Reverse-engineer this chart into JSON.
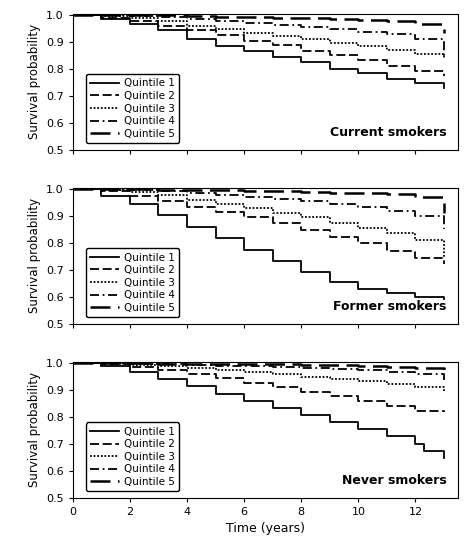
{
  "panels": [
    {
      "title": "Current smokers",
      "ylim": [
        0.5,
        1.005
      ],
      "yticks": [
        0.5,
        0.6,
        0.7,
        0.8,
        0.9,
        1.0
      ],
      "quintiles": {
        "Q1": {
          "times": [
            0,
            1,
            2,
            3,
            4,
            5,
            6,
            7,
            8,
            9,
            10,
            11,
            12,
            13
          ],
          "surv": [
            1.0,
            0.985,
            0.965,
            0.945,
            0.91,
            0.885,
            0.865,
            0.845,
            0.825,
            0.8,
            0.785,
            0.763,
            0.748,
            0.73
          ]
        },
        "Q2": {
          "times": [
            0,
            1,
            2,
            3,
            4,
            5,
            6,
            7,
            8,
            9,
            10,
            11,
            12,
            13
          ],
          "surv": [
            1.0,
            0.99,
            0.978,
            0.96,
            0.943,
            0.925,
            0.905,
            0.887,
            0.867,
            0.85,
            0.832,
            0.812,
            0.793,
            0.775
          ]
        },
        "Q3": {
          "times": [
            0,
            1,
            2,
            3,
            4,
            5,
            6,
            7,
            8,
            9,
            10,
            11,
            12,
            13
          ],
          "surv": [
            1.0,
            0.997,
            0.989,
            0.978,
            0.96,
            0.947,
            0.934,
            0.922,
            0.91,
            0.897,
            0.885,
            0.87,
            0.855,
            0.84
          ]
        },
        "Q4": {
          "times": [
            0,
            1,
            2,
            3,
            4,
            5,
            6,
            7,
            8,
            9,
            10,
            11,
            12,
            13
          ],
          "surv": [
            1.0,
            0.999,
            0.996,
            0.991,
            0.985,
            0.978,
            0.97,
            0.962,
            0.954,
            0.946,
            0.938,
            0.928,
            0.912,
            0.84
          ]
        },
        "Q5": {
          "times": [
            0,
            1,
            2,
            3,
            4,
            5,
            6,
            7,
            8,
            9,
            10,
            11,
            12,
            13
          ],
          "surv": [
            1.0,
            1.0,
            0.999,
            0.998,
            0.996,
            0.994,
            0.992,
            0.99,
            0.988,
            0.985,
            0.982,
            0.976,
            0.965,
            0.932
          ]
        }
      }
    },
    {
      "title": "Former smokers",
      "ylim": [
        0.5,
        1.005
      ],
      "yticks": [
        0.5,
        0.6,
        0.7,
        0.8,
        0.9,
        1.0
      ],
      "quintiles": {
        "Q1": {
          "times": [
            0,
            1,
            2,
            3,
            4,
            5,
            6,
            7,
            8,
            9,
            10,
            11,
            12,
            13
          ],
          "surv": [
            1.0,
            0.975,
            0.945,
            0.905,
            0.86,
            0.818,
            0.775,
            0.732,
            0.692,
            0.655,
            0.628,
            0.615,
            0.6,
            0.59
          ]
        },
        "Q2": {
          "times": [
            0,
            1,
            2,
            3,
            4,
            5,
            6,
            7,
            8,
            9,
            10,
            11,
            12,
            13
          ],
          "surv": [
            1.0,
            0.992,
            0.975,
            0.955,
            0.935,
            0.915,
            0.895,
            0.872,
            0.848,
            0.822,
            0.798,
            0.77,
            0.745,
            0.72
          ]
        },
        "Q3": {
          "times": [
            0,
            1,
            2,
            3,
            4,
            5,
            6,
            7,
            8,
            9,
            10,
            11,
            12,
            13
          ],
          "surv": [
            1.0,
            0.996,
            0.988,
            0.976,
            0.96,
            0.945,
            0.928,
            0.912,
            0.895,
            0.875,
            0.855,
            0.835,
            0.812,
            0.745
          ]
        },
        "Q4": {
          "times": [
            0,
            1,
            2,
            3,
            4,
            5,
            6,
            7,
            8,
            9,
            10,
            11,
            12,
            13
          ],
          "surv": [
            1.0,
            0.999,
            0.996,
            0.992,
            0.985,
            0.979,
            0.972,
            0.964,
            0.955,
            0.944,
            0.932,
            0.918,
            0.9,
            0.852
          ]
        },
        "Q5": {
          "times": [
            0,
            1,
            2,
            3,
            4,
            5,
            6,
            7,
            8,
            9,
            10,
            11,
            12,
            13
          ],
          "surv": [
            1.0,
            1.0,
            0.999,
            0.998,
            0.997,
            0.995,
            0.993,
            0.991,
            0.989,
            0.987,
            0.984,
            0.98,
            0.972,
            0.912
          ]
        }
      }
    },
    {
      "title": "Never smokers",
      "ylim": [
        0.5,
        1.005
      ],
      "yticks": [
        0.5,
        0.6,
        0.7,
        0.8,
        0.9,
        1.0
      ],
      "quintiles": {
        "Q1": {
          "times": [
            0,
            1,
            2,
            3,
            4,
            5,
            6,
            7,
            8,
            9,
            10,
            11,
            12,
            12.3,
            13
          ],
          "surv": [
            1.0,
            0.99,
            0.968,
            0.942,
            0.915,
            0.887,
            0.86,
            0.834,
            0.808,
            0.782,
            0.756,
            0.728,
            0.7,
            0.672,
            0.648
          ]
        },
        "Q2": {
          "times": [
            0,
            1,
            2,
            3,
            4,
            5,
            6,
            7,
            8,
            9,
            10,
            11,
            12,
            13
          ],
          "surv": [
            1.0,
            0.997,
            0.987,
            0.975,
            0.96,
            0.943,
            0.927,
            0.911,
            0.894,
            0.877,
            0.86,
            0.84,
            0.822,
            0.82
          ]
        },
        "Q3": {
          "times": [
            0,
            1,
            2,
            3,
            4,
            5,
            6,
            7,
            8,
            9,
            10,
            11,
            12,
            13
          ],
          "surv": [
            1.0,
            0.999,
            0.994,
            0.988,
            0.981,
            0.974,
            0.966,
            0.958,
            0.95,
            0.941,
            0.932,
            0.921,
            0.91,
            0.895
          ]
        },
        "Q4": {
          "times": [
            0,
            1,
            2,
            3,
            4,
            5,
            6,
            7,
            8,
            9,
            10,
            11,
            12,
            13
          ],
          "surv": [
            1.0,
            1.0,
            0.998,
            0.996,
            0.994,
            0.991,
            0.988,
            0.985,
            0.981,
            0.977,
            0.973,
            0.968,
            0.96,
            0.936
          ]
        },
        "Q5": {
          "times": [
            0,
            1,
            2,
            3,
            4,
            5,
            6,
            7,
            8,
            9,
            10,
            11,
            12,
            13
          ],
          "surv": [
            1.0,
            1.0,
            0.999,
            0.998,
            0.998,
            0.997,
            0.996,
            0.995,
            0.993,
            0.992,
            0.99,
            0.987,
            0.983,
            0.967
          ]
        }
      }
    }
  ],
  "legend_labels": [
    "Quintile 1",
    "Quintile 2",
    "Quintile 3",
    "Quintile 4",
    "Quintile 5"
  ],
  "xlabel": "Time (years)",
  "ylabel": "Survival probability",
  "xlim": [
    0,
    13.5
  ],
  "xticks": [
    0,
    2,
    4,
    6,
    8,
    10,
    12
  ],
  "title_fontsize": 9,
  "label_fontsize": 8.5,
  "tick_fontsize": 8,
  "legend_fontsize": 7.5
}
